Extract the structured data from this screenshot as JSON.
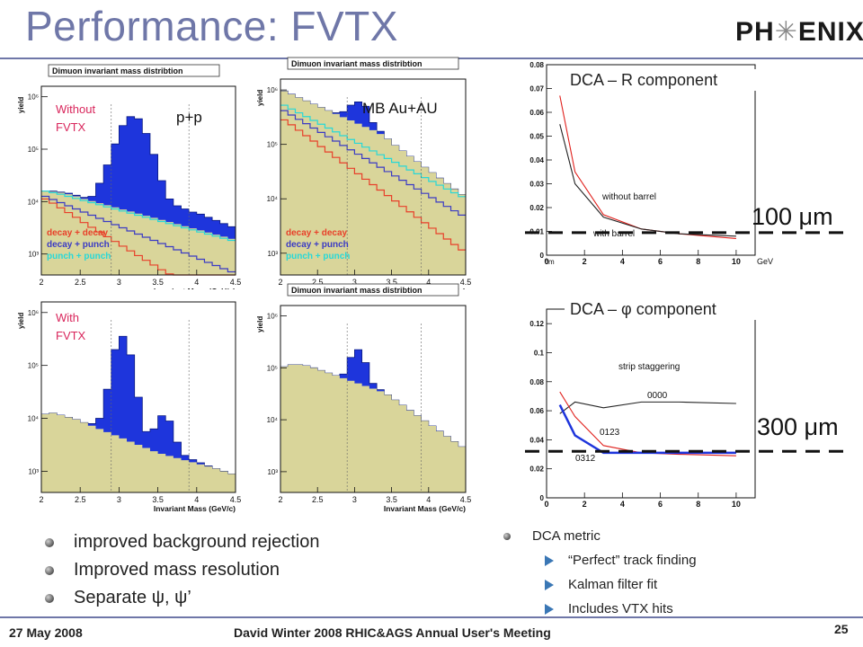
{
  "slide": {
    "title": "Performance: FVTX",
    "logo": {
      "left": "PH",
      "mid": "✳",
      "right": "ENIX"
    }
  },
  "panels": {
    "hist_title": "Dimuon invariant mass distribtion",
    "ylabel": "yield",
    "xlabel": "Invariant Mass (GeV/c)",
    "xticks": [
      "2",
      "2.5",
      "3",
      "3.5",
      "4",
      "4.5"
    ],
    "yticks": [
      "10³",
      "10⁴",
      "10⁵",
      "10⁶"
    ],
    "tag_without": [
      "Without",
      "FVTX"
    ],
    "tag_with": [
      "With",
      "FVTX"
    ],
    "tag_pp": "p+p",
    "tag_auau": "MB Au+AU",
    "legend": [
      "decay + decay",
      "decay + punch",
      "punch + punch"
    ]
  },
  "dca": {
    "r_title": "DCA – R component",
    "phi_title": "DCA –  φ  component",
    "r_marker": "100 μm",
    "phi_marker": "300 μm"
  },
  "bullets_left": [
    "improved background rejection",
    "Improved mass resolution",
    "Separate  ψ,  ψ’"
  ],
  "bullets_right": {
    "head": "DCA metric",
    "items": [
      "“Perfect” track finding",
      "Kalman filter fit",
      "Includes VTX hits"
    ]
  },
  "footer": {
    "date": "27 May 2008",
    "meeting": "David Winter 2008 RHIC&AGS Annual User's Meeting",
    "page": "25"
  },
  "colors": {
    "title": "#6f77a8",
    "signal": "#1e35dc",
    "background_fill": "#d9d59a",
    "decay_decay": "#e8402a",
    "decay_punch": "#3b3bc4",
    "punch_punch": "#27d8d8",
    "tag_text": "#d9265c",
    "arrow": "#3a77b5"
  },
  "chart_data": [
    {
      "type": "bar",
      "id": "pp-without-fvtx",
      "title": "Dimuon invariant mass distribtion",
      "xlabel": "Invariant Mass (GeV/c)",
      "ylabel": "yield",
      "xlim": [
        2,
        4.5
      ],
      "ylim_log10": [
        2.6,
        6.2
      ],
      "x": [
        2.0,
        2.1,
        2.2,
        2.3,
        2.4,
        2.5,
        2.6,
        2.7,
        2.8,
        2.9,
        3.0,
        3.1,
        3.2,
        3.3,
        3.4,
        3.5,
        3.6,
        3.7,
        3.8,
        3.9,
        4.0,
        4.1,
        4.2,
        4.3,
        4.4
      ],
      "series": [
        {
          "name": "signal",
          "log10_values": [
            4.2,
            4.2,
            4.18,
            4.16,
            4.12,
            4.08,
            4.1,
            4.35,
            4.7,
            5.1,
            5.45,
            5.62,
            5.58,
            5.3,
            4.9,
            4.4,
            4.05,
            3.92,
            3.86,
            3.8,
            3.76,
            3.7,
            3.64,
            3.58,
            3.52
          ]
        },
        {
          "name": "background",
          "log10_values": [
            4.2,
            4.19,
            4.17,
            4.14,
            4.1,
            4.05,
            4.01,
            3.97,
            3.93,
            3.89,
            3.85,
            3.81,
            3.77,
            3.73,
            3.69,
            3.65,
            3.61,
            3.57,
            3.53,
            3.49,
            3.45,
            3.41,
            3.37,
            3.33,
            3.29
          ]
        },
        {
          "name": "decay + decay",
          "log10_values": [
            4.05,
            3.97,
            3.88,
            3.79,
            3.7,
            3.6,
            3.51,
            3.42,
            3.33,
            3.24,
            3.15,
            3.06,
            2.97,
            2.88,
            2.79,
            2.7,
            2.62,
            2.55,
            2.49,
            2.44,
            2.4,
            2.36,
            2.33,
            2.3,
            2.28
          ]
        },
        {
          "name": "decay + punch",
          "log10_values": [
            4.1,
            4.04,
            3.98,
            3.92,
            3.86,
            3.8,
            3.74,
            3.68,
            3.62,
            3.56,
            3.5,
            3.44,
            3.38,
            3.32,
            3.26,
            3.2,
            3.14,
            3.08,
            3.02,
            2.96,
            2.9,
            2.84,
            2.78,
            2.72,
            2.66
          ]
        },
        {
          "name": "punch + punch",
          "log10_values": [
            4.2,
            4.17,
            4.14,
            4.1,
            4.06,
            4.02,
            3.98,
            3.94,
            3.9,
            3.86,
            3.82,
            3.78,
            3.74,
            3.7,
            3.66,
            3.62,
            3.58,
            3.54,
            3.5,
            3.46,
            3.42,
            3.38,
            3.34,
            3.3,
            3.26
          ]
        }
      ]
    },
    {
      "type": "bar",
      "id": "auau-without-fvtx",
      "title": "Dimuon invariant mass distribtion",
      "xlabel": "Invariant Mass (GeV/c)",
      "ylabel": "yield",
      "xlim": [
        2,
        4.5
      ],
      "ylim_log10": [
        2.6,
        6.2
      ],
      "x": [
        2.0,
        2.1,
        2.2,
        2.3,
        2.4,
        2.5,
        2.6,
        2.7,
        2.8,
        2.9,
        3.0,
        3.1,
        3.2,
        3.3,
        3.4,
        3.5,
        3.6,
        3.7,
        3.8,
        3.9,
        4.0,
        4.1,
        4.2,
        4.3,
        4.4
      ],
      "series": [
        {
          "name": "signal",
          "log10_values": [
            5.98,
            5.92,
            5.86,
            5.8,
            5.74,
            5.68,
            5.62,
            5.58,
            5.6,
            5.72,
            5.78,
            5.7,
            5.4,
            5.24,
            5.1,
            4.98,
            4.88,
            4.78,
            4.68,
            4.58,
            4.48,
            4.38,
            4.28,
            4.18,
            4.08
          ]
        },
        {
          "name": "background",
          "log10_values": [
            5.98,
            5.92,
            5.86,
            5.8,
            5.74,
            5.68,
            5.62,
            5.56,
            5.5,
            5.44,
            5.38,
            5.32,
            5.26,
            5.19,
            5.1,
            4.98,
            4.88,
            4.78,
            4.68,
            4.58,
            4.48,
            4.38,
            4.28,
            4.18,
            4.08
          ]
        },
        {
          "name": "decay + decay",
          "log10_values": [
            5.45,
            5.36,
            5.26,
            5.16,
            5.06,
            4.96,
            4.86,
            4.76,
            4.66,
            4.56,
            4.46,
            4.36,
            4.26,
            4.16,
            4.06,
            3.96,
            3.86,
            3.76,
            3.66,
            3.56,
            3.46,
            3.36,
            3.26,
            3.16,
            3.06
          ]
        },
        {
          "name": "decay + punch",
          "log10_values": [
            5.62,
            5.54,
            5.46,
            5.38,
            5.3,
            5.22,
            5.14,
            5.06,
            4.98,
            4.9,
            4.82,
            4.74,
            4.66,
            4.58,
            4.5,
            4.42,
            4.34,
            4.26,
            4.18,
            4.1,
            4.02,
            3.94,
            3.86,
            3.78,
            3.7
          ]
        },
        {
          "name": "punch + punch",
          "log10_values": [
            5.72,
            5.65,
            5.58,
            5.51,
            5.44,
            5.37,
            5.3,
            5.23,
            5.16,
            5.09,
            5.02,
            4.95,
            4.88,
            4.81,
            4.74,
            4.67,
            4.6,
            4.53,
            4.46,
            4.39,
            4.32,
            4.25,
            4.18,
            4.11,
            4.04
          ]
        }
      ]
    },
    {
      "type": "bar",
      "id": "pp-with-fvtx",
      "xlabel": "Invariant Mass (GeV/c)",
      "ylabel": "yield",
      "xlim": [
        2,
        4.5
      ],
      "ylim_log10": [
        2.6,
        6.2
      ],
      "x": [
        2.0,
        2.1,
        2.2,
        2.3,
        2.4,
        2.5,
        2.6,
        2.7,
        2.8,
        2.9,
        3.0,
        3.1,
        3.2,
        3.3,
        3.4,
        3.5,
        3.6,
        3.7,
        3.8,
        3.9,
        4.0,
        4.1,
        4.2,
        4.3,
        4.4
      ],
      "series": [
        {
          "name": "signal",
          "log10_values": [
            4.08,
            4.1,
            4.06,
            4.02,
            3.98,
            3.92,
            3.9,
            4.0,
            4.55,
            5.3,
            5.55,
            5.2,
            4.4,
            3.75,
            3.8,
            4.05,
            3.95,
            3.55,
            3.3,
            3.22,
            3.16,
            3.1,
            3.05,
            3.0,
            2.95
          ]
        },
        {
          "name": "background",
          "log10_values": [
            4.08,
            4.1,
            4.06,
            4.02,
            3.98,
            3.92,
            3.86,
            3.8,
            3.74,
            3.68,
            3.62,
            3.56,
            3.5,
            3.44,
            3.38,
            3.33,
            3.29,
            3.25,
            3.21,
            3.17,
            3.13,
            3.09,
            3.05,
            3.0,
            2.95
          ]
        }
      ]
    },
    {
      "type": "bar",
      "id": "auau-with-fvtx",
      "xlabel": "Invariant Mass (GeV/c)",
      "ylabel": "yield",
      "xlim": [
        2,
        4.5
      ],
      "ylim_log10": [
        2.6,
        6.2
      ],
      "x": [
        2.0,
        2.1,
        2.2,
        2.3,
        2.4,
        2.5,
        2.6,
        2.7,
        2.8,
        2.9,
        3.0,
        3.1,
        3.2,
        3.3,
        3.4,
        3.5,
        3.6,
        3.7,
        3.8,
        3.9,
        4.0,
        4.1,
        4.2,
        4.3,
        4.4
      ],
      "series": [
        {
          "name": "signal",
          "log10_values": [
            5.02,
            5.06,
            5.06,
            5.04,
            5.0,
            4.95,
            4.9,
            4.85,
            4.88,
            5.2,
            5.35,
            5.1,
            4.7,
            4.58,
            4.48,
            4.38,
            4.28,
            4.18,
            4.08,
            3.98,
            3.88,
            3.78,
            3.68,
            3.58,
            3.48
          ]
        },
        {
          "name": "background",
          "log10_values": [
            5.02,
            5.06,
            5.06,
            5.04,
            5.0,
            4.95,
            4.9,
            4.85,
            4.8,
            4.75,
            4.7,
            4.65,
            4.6,
            4.55,
            4.48,
            4.38,
            4.28,
            4.18,
            4.08,
            3.98,
            3.88,
            3.78,
            3.68,
            3.58,
            3.48
          ]
        }
      ]
    },
    {
      "type": "line",
      "id": "dca-r",
      "title": "DCA – R component",
      "xlabel": "GeV",
      "ylabel": "cm",
      "xlim": [
        0,
        11
      ],
      "ylim": [
        0,
        0.08
      ],
      "xticks": [
        0,
        2,
        4,
        6,
        8,
        10
      ],
      "yticks": [
        0,
        0.01,
        0.02,
        0.03,
        0.04,
        0.05,
        0.06,
        0.07,
        0.08
      ],
      "annotations": [
        "without barrel",
        "with barrel"
      ],
      "series": [
        {
          "name": "without barrel",
          "color": "#e0201c",
          "x": [
            0.7,
            1.5,
            3,
            5,
            7,
            10
          ],
          "y": [
            0.067,
            0.035,
            0.017,
            0.011,
            0.009,
            0.007
          ]
        },
        {
          "name": "with barrel",
          "color": "#222222",
          "x": [
            0.7,
            1.5,
            3,
            5,
            7,
            10
          ],
          "y": [
            0.055,
            0.03,
            0.016,
            0.011,
            0.009,
            0.008
          ]
        }
      ],
      "reference": 0.0095
    },
    {
      "type": "line",
      "id": "dca-phi",
      "title": "DCA –  φ  component",
      "xlim": [
        0,
        11
      ],
      "ylim": [
        0,
        0.13
      ],
      "xticks": [
        0,
        2,
        4,
        6,
        8,
        10
      ],
      "yticks": [
        0,
        0.02,
        0.04,
        0.06,
        0.08,
        0.1,
        0.12
      ],
      "annotations": [
        "strip staggering",
        "0000",
        "0123",
        "0312"
      ],
      "series": [
        {
          "name": "0000",
          "color": "#222222",
          "x": [
            0.7,
            1.5,
            3,
            5,
            7,
            10
          ],
          "y": [
            0.058,
            0.066,
            0.062,
            0.066,
            0.066,
            0.065
          ]
        },
        {
          "name": "0123",
          "color": "#e0201c",
          "x": [
            0.7,
            1.5,
            3,
            5,
            7,
            10
          ],
          "y": [
            0.073,
            0.056,
            0.036,
            0.031,
            0.03,
            0.029
          ]
        },
        {
          "name": "0312",
          "color": "#1e35dc",
          "x": [
            0.7,
            1.5,
            3,
            5,
            7,
            10
          ],
          "y": [
            0.064,
            0.043,
            0.031,
            0.031,
            0.031,
            0.031
          ]
        }
      ],
      "reference": 0.032
    }
  ]
}
